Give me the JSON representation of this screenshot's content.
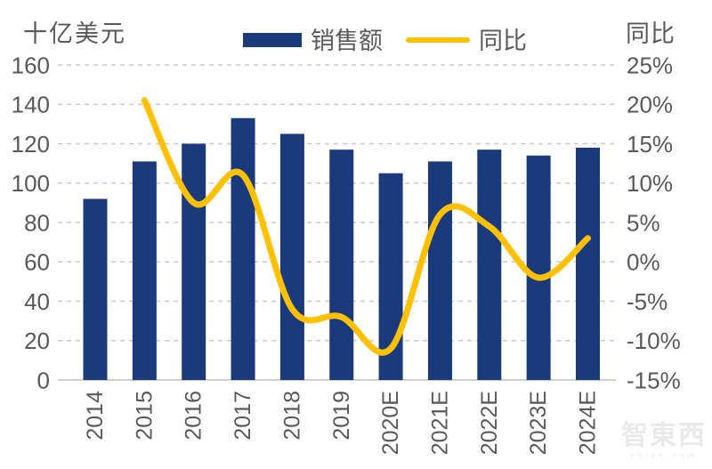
{
  "header": {
    "left_axis_title": "十亿美元",
    "right_axis_title": "同比",
    "legend": [
      {
        "label": "销售额",
        "type": "bar",
        "color": "#1A3A7C"
      },
      {
        "label": "同比",
        "type": "line",
        "color": "#FFC000"
      }
    ]
  },
  "colors": {
    "bar": "#1A3A7C",
    "line": "#FFC000",
    "text": "#595959",
    "gridline": "#C9C9C9",
    "axis_line": "#BFBFBF"
  },
  "watermark": {
    "logo_text": "智東西",
    "sub_text": "zhidx.com"
  },
  "chart_data": {
    "type": "bar",
    "title": "",
    "categories": [
      "2014",
      "2015",
      "2016",
      "2017",
      "2018",
      "2019",
      "2020E",
      "2021E",
      "2022E",
      "2023E",
      "2024E"
    ],
    "series": [
      {
        "name": "销售额",
        "type": "bar",
        "axis": "left",
        "color": "#1A3A7C",
        "values": [
          92,
          111,
          120,
          133,
          125,
          117,
          105,
          111,
          117,
          114,
          118
        ]
      },
      {
        "name": "同比",
        "type": "line",
        "axis": "right",
        "color": "#FFC000",
        "values": [
          null,
          20.5,
          7.5,
          11,
          -6,
          -7,
          -11,
          6,
          4.5,
          -2,
          3
        ]
      }
    ],
    "left_axis": {
      "title": "十亿美元",
      "range": [
        0,
        160
      ],
      "tick_labels": [
        "160",
        "140",
        "120",
        "100",
        "80",
        "60",
        "40",
        "20",
        "0"
      ],
      "tick_values": [
        160,
        140,
        120,
        100,
        80,
        60,
        40,
        20,
        0
      ]
    },
    "right_axis": {
      "title": "同比",
      "range": [
        -15,
        25
      ],
      "tick_labels": [
        "25%",
        "20%",
        "15%",
        "10%",
        "5%",
        "0%",
        "-5%",
        "-10%",
        "-15%"
      ],
      "tick_values": [
        25,
        20,
        15,
        10,
        5,
        0,
        -5,
        -10,
        -15
      ]
    },
    "grid": "horizontal-dashed",
    "legend_position": "top-center"
  }
}
